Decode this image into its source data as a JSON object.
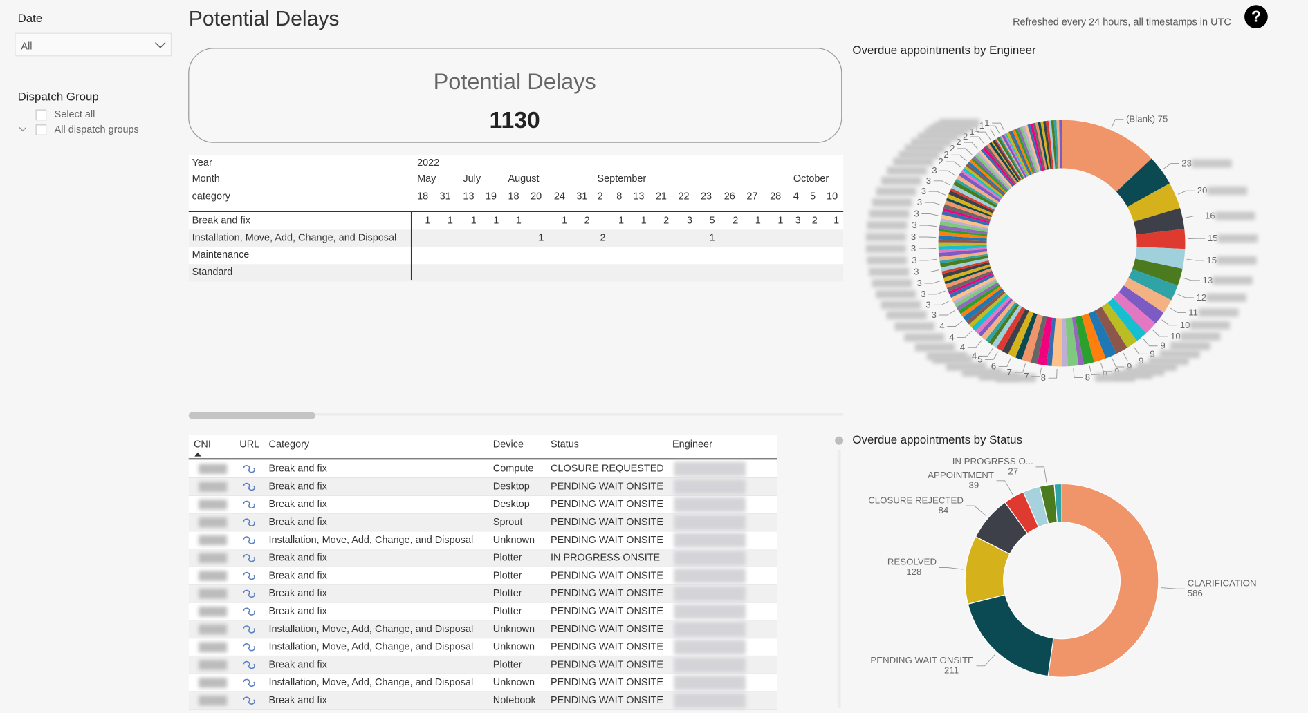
{
  "header": {
    "title": "Potential Delays",
    "refresh_note": "Refreshed every 24 hours, all timestamps in UTC"
  },
  "filters": {
    "date": {
      "label": "Date",
      "value": "All"
    },
    "dispatch_group": {
      "label": "Dispatch Group",
      "options": [
        "Select all",
        "All dispatch groups"
      ]
    }
  },
  "card": {
    "title": "Potential Delays",
    "value": 1130
  },
  "matrix": {
    "row_labels": [
      "Year",
      "Month",
      "category"
    ],
    "year": 2022,
    "months": [
      {
        "name": "May",
        "days": [
          18,
          31
        ]
      },
      {
        "name": "July",
        "days": [
          13,
          19
        ]
      },
      {
        "name": "August",
        "days": [
          18,
          20,
          24,
          31
        ]
      },
      {
        "name": "September",
        "days": [
          2,
          8,
          13,
          21,
          22,
          23,
          26,
          27,
          28
        ]
      },
      {
        "name": "October",
        "days": [
          4,
          5,
          10
        ]
      }
    ],
    "rows": [
      {
        "name": "Break and fix",
        "values": [
          1,
          1,
          1,
          1,
          1,
          null,
          1,
          2,
          null,
          1,
          1,
          2,
          3,
          5,
          2,
          1,
          1,
          3,
          2,
          1
        ]
      },
      {
        "name": "Installation, Move, Add, Change, and Disposal",
        "values": [
          null,
          null,
          null,
          null,
          null,
          1,
          null,
          null,
          2,
          null,
          null,
          null,
          null,
          1,
          null,
          null,
          null,
          null,
          null,
          null
        ]
      },
      {
        "name": "Maintenance",
        "values": [
          null,
          null,
          null,
          null,
          null,
          null,
          null,
          null,
          null,
          null,
          null,
          null,
          null,
          null,
          null,
          null,
          null,
          null,
          null,
          null
        ]
      },
      {
        "name": "Standard",
        "values": [
          null,
          null,
          null,
          null,
          null,
          null,
          null,
          null,
          null,
          null,
          null,
          null,
          null,
          null,
          null,
          null,
          null,
          null,
          null,
          null
        ]
      }
    ]
  },
  "table": {
    "columns": [
      "CNI",
      "URL",
      "Category",
      "Device",
      "Status",
      "Engineer"
    ],
    "rows": [
      [
        "Break and fix",
        "Compute",
        "CLOSURE REQUESTED"
      ],
      [
        "Break and fix",
        "Desktop",
        "PENDING WAIT ONSITE"
      ],
      [
        "Break and fix",
        "Desktop",
        "PENDING WAIT ONSITE"
      ],
      [
        "Break and fix",
        "Sprout",
        "PENDING WAIT ONSITE"
      ],
      [
        "Installation, Move, Add, Change, and Disposal",
        "Unknown",
        "PENDING WAIT ONSITE"
      ],
      [
        "Break and fix",
        "Plotter",
        "IN PROGRESS ONSITE"
      ],
      [
        "Break and fix",
        "Plotter",
        "PENDING WAIT ONSITE"
      ],
      [
        "Break and fix",
        "Plotter",
        "PENDING WAIT ONSITE"
      ],
      [
        "Break and fix",
        "Plotter",
        "PENDING WAIT ONSITE"
      ],
      [
        "Installation, Move, Add, Change, and Disposal",
        "Unknown",
        "PENDING WAIT ONSITE"
      ],
      [
        "Installation, Move, Add, Change, and Disposal",
        "Unknown",
        "PENDING WAIT ONSITE"
      ],
      [
        "Break and fix",
        "Plotter",
        "PENDING WAIT ONSITE"
      ],
      [
        "Installation, Move, Add, Change, and Disposal",
        "Unknown",
        "PENDING WAIT ONSITE"
      ],
      [
        "Break and fix",
        "Notebook",
        "PENDING WAIT ONSITE"
      ]
    ]
  },
  "chart_data": [
    {
      "type": "donut",
      "title": "Overdue appointments by Engineer",
      "categories": [
        "(Blank)",
        null,
        null,
        null,
        null,
        null,
        null,
        null,
        null,
        null,
        null,
        null,
        null,
        null,
        null,
        null,
        null,
        null,
        null,
        null,
        null,
        null,
        null,
        null,
        null,
        null,
        null,
        null,
        null,
        null,
        null,
        null,
        null,
        null,
        null,
        null,
        null,
        null,
        null,
        null,
        null,
        null,
        null,
        null,
        null,
        null,
        null,
        null,
        null,
        null,
        null,
        null,
        null,
        null,
        null,
        null,
        null,
        null,
        null,
        null,
        null,
        null,
        null,
        null,
        null,
        null,
        null,
        null,
        null,
        null,
        null,
        null,
        null,
        null,
        null,
        null,
        null,
        null,
        null,
        null,
        null,
        null,
        null,
        null,
        null,
        null,
        null,
        null,
        null,
        null,
        null,
        null,
        null,
        null,
        null,
        null,
        null,
        null,
        null,
        null,
        null,
        null,
        null,
        null,
        null,
        null,
        null,
        null,
        null,
        null,
        null,
        null,
        null,
        null,
        null,
        null,
        null,
        null,
        null,
        null,
        null,
        null,
        null,
        null,
        null,
        null,
        null,
        null,
        null,
        null
      ],
      "values": [
        75,
        23,
        20,
        16,
        15,
        15,
        13,
        12,
        11,
        10,
        10,
        9,
        9,
        9,
        9,
        9,
        8,
        4,
        8,
        4,
        8,
        4,
        7,
        5,
        7,
        5,
        6,
        5,
        5,
        4,
        3,
        3,
        4,
        3,
        3,
        4,
        3,
        3,
        4,
        3,
        3,
        3,
        3,
        2,
        3,
        3,
        2,
        3,
        3,
        2,
        3,
        3,
        2,
        3,
        3,
        2,
        3,
        3,
        2,
        3,
        3,
        2,
        3,
        3,
        2,
        3,
        3,
        2,
        3,
        3,
        2,
        3,
        3,
        2,
        3,
        3,
        2,
        3,
        3,
        2,
        3,
        3,
        2,
        2,
        2,
        2,
        2,
        2,
        2,
        2,
        2,
        2,
        2,
        2,
        2,
        2,
        2,
        2,
        1,
        2,
        1,
        1,
        2,
        1,
        1,
        2,
        1,
        1,
        2,
        1,
        2,
        2,
        2,
        2,
        2,
        2,
        2,
        2,
        2,
        2,
        2,
        2,
        2,
        2,
        2,
        2,
        2,
        2,
        2,
        2
      ],
      "value_labels": [
        "75",
        "23",
        "20",
        "16",
        "15",
        "15",
        "13",
        "12",
        "11",
        "10",
        "10",
        "9",
        "9",
        "9",
        "9",
        "9",
        "8",
        null,
        "8",
        null,
        "8",
        null,
        "7",
        null,
        "7",
        null,
        "6",
        null,
        "5",
        "4",
        null,
        null,
        "4",
        null,
        null,
        "4",
        null,
        null,
        "4",
        null,
        null,
        "3",
        null,
        null,
        "3",
        null,
        null,
        "3",
        null,
        null,
        "3",
        null,
        null,
        "3",
        null,
        null,
        "3",
        null,
        null,
        "3",
        null,
        null,
        "3",
        null,
        null,
        "3",
        null,
        null,
        "3",
        null,
        null,
        "3",
        null,
        null,
        "3",
        null,
        null,
        "3",
        null,
        null,
        "3",
        null,
        null,
        "2",
        null,
        null,
        "2",
        null,
        null,
        "2",
        null,
        null,
        "2",
        null,
        null,
        "2",
        null,
        null,
        "1",
        null,
        null,
        "1",
        null,
        null,
        "1",
        null,
        null,
        "1",
        null,
        null,
        null,
        null,
        null,
        null,
        null,
        null,
        null,
        null,
        null,
        null,
        null,
        null,
        null,
        null,
        null,
        null,
        null,
        null,
        null,
        null
      ],
      "colors": [
        "#f0956a",
        "#0b4a52",
        "#d5b21c",
        "#3e4049",
        "#df3a2f",
        "#9fd0dc",
        "#4c7a1e",
        "#2fa3a6",
        "#f4b183",
        "#7c5cc4",
        "#e377c2",
        "#17becf",
        "#bcbd22",
        "#8c564b",
        "#1f77b4",
        "#ff7f0e",
        "#2ca02c",
        "#9467bd",
        "#7fc97f",
        "#beaed4",
        "#fdc086",
        "#386cb0",
        "#f0027f",
        "#666666"
      ]
    },
    {
      "type": "donut",
      "title": "Overdue appointments by Status",
      "categories": [
        "CLARIFICATION",
        "PENDING WAIT ONSITE",
        "RESOLVED",
        "CLOSURE REJECTED",
        "APPOINTMENT",
        null,
        "IN PROGRESS O...",
        null
      ],
      "values": [
        586,
        211,
        128,
        84,
        39,
        32,
        27,
        14
      ],
      "colors": [
        "#f0956a",
        "#0b4a52",
        "#d5b21c",
        "#3e4049",
        "#df3a2f",
        "#a6d2dd",
        "#4c7a1e",
        "#2fa3a6"
      ]
    }
  ]
}
